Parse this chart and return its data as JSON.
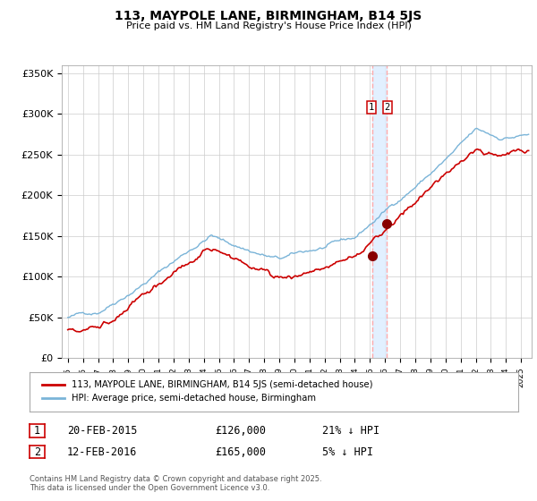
{
  "title": "113, MAYPOLE LANE, BIRMINGHAM, B14 5JS",
  "subtitle": "Price paid vs. HM Land Registry's House Price Index (HPI)",
  "hpi_label": "HPI: Average price, semi-detached house, Birmingham",
  "property_label": "113, MAYPOLE LANE, BIRMINGHAM, B14 5JS (semi-detached house)",
  "hpi_color": "#7ab4d8",
  "property_color": "#cc0000",
  "point_color": "#880000",
  "annotation_bg": "#ddeeff",
  "dashed_line_color": "#ff8888",
  "ylabel_ticks": [
    "£0",
    "£50K",
    "£100K",
    "£150K",
    "£200K",
    "£250K",
    "£300K",
    "£350K"
  ],
  "ylabel_values": [
    0,
    50000,
    100000,
    150000,
    200000,
    250000,
    300000,
    350000
  ],
  "ylim": [
    0,
    360000
  ],
  "sale1_date": "20-FEB-2015",
  "sale1_price": 126000,
  "sale1_hpi_pct": "21% ↓ HPI",
  "sale2_date": "12-FEB-2016",
  "sale2_price": 165000,
  "sale2_hpi_pct": "5% ↓ HPI",
  "footnote": "Contains HM Land Registry data © Crown copyright and database right 2025.\nThis data is licensed under the Open Government Licence v3.0.",
  "sale1_year": 2015.13,
  "sale2_year": 2016.12,
  "year_start": 1995,
  "year_end": 2025
}
